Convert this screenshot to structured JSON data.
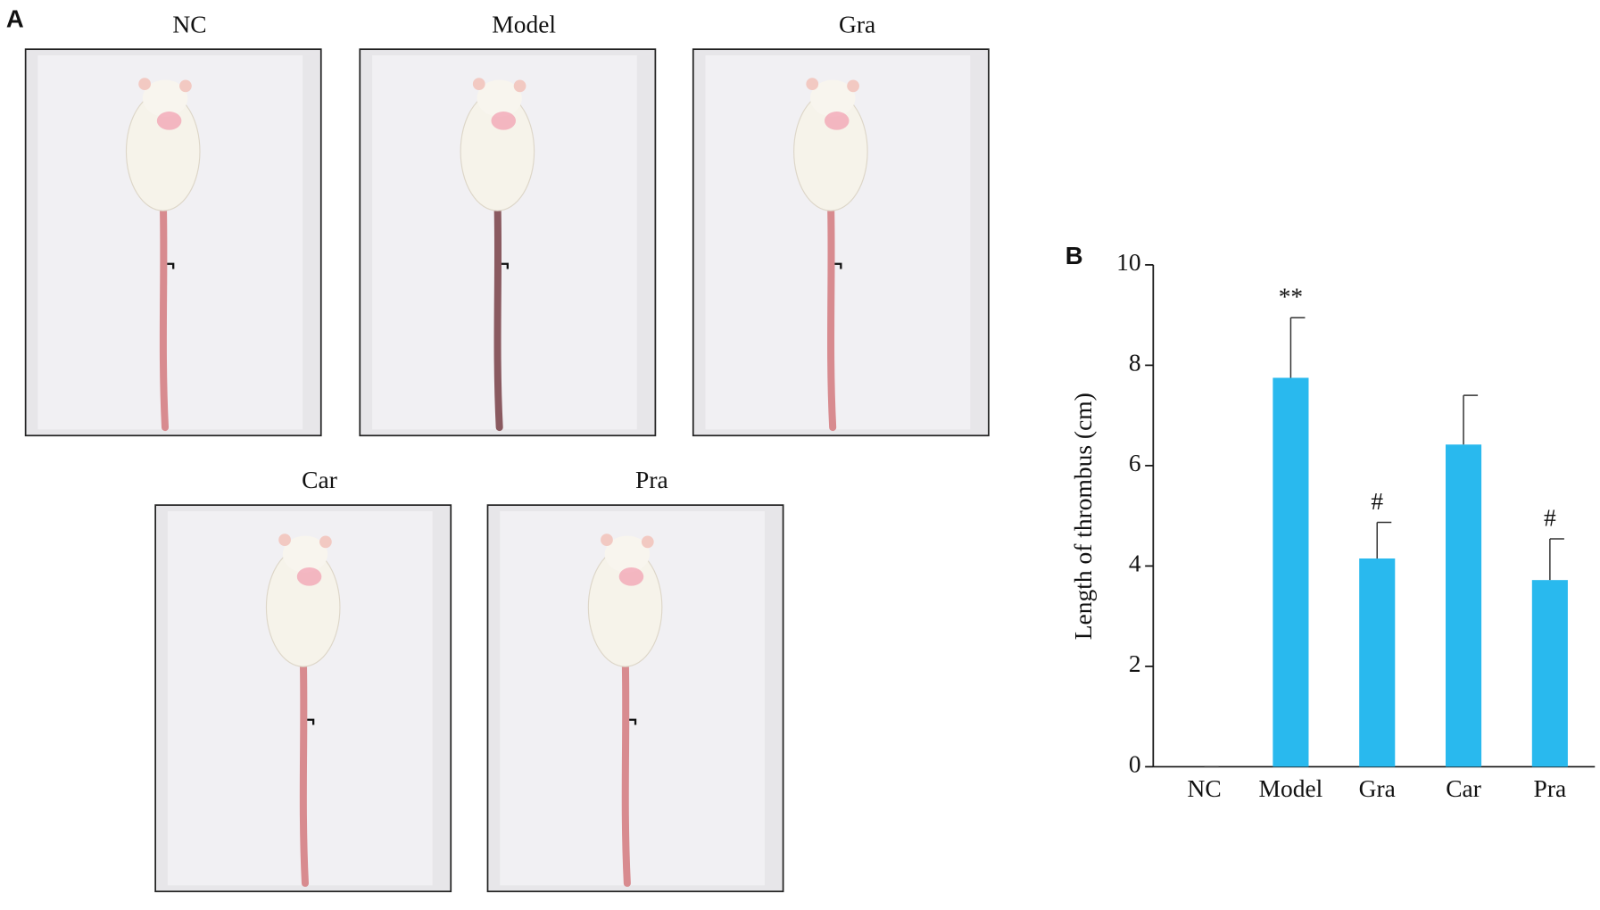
{
  "panel_a": {
    "label": "A",
    "photos": [
      {
        "label": "NC"
      },
      {
        "label": "Model"
      },
      {
        "label": "Gra"
      },
      {
        "label": "Car"
      },
      {
        "label": "Pra"
      }
    ]
  },
  "chart_data": {
    "type": "bar",
    "panel_label": "B",
    "y_label": "Length of thrombus (cm)",
    "categories": [
      "NC",
      "Model",
      "Gra",
      "Car",
      "Pra"
    ],
    "values": [
      0,
      7.75,
      4.15,
      6.42,
      3.72
    ],
    "errors": [
      0,
      1.2,
      0.72,
      0.98,
      0.82
    ],
    "annotations": [
      null,
      "**",
      "#",
      null,
      "#"
    ],
    "color": "#29b9ee",
    "ylim": [
      0,
      10
    ],
    "yticks": [
      0,
      2,
      4,
      6,
      8,
      10
    ],
    "grid": false
  }
}
